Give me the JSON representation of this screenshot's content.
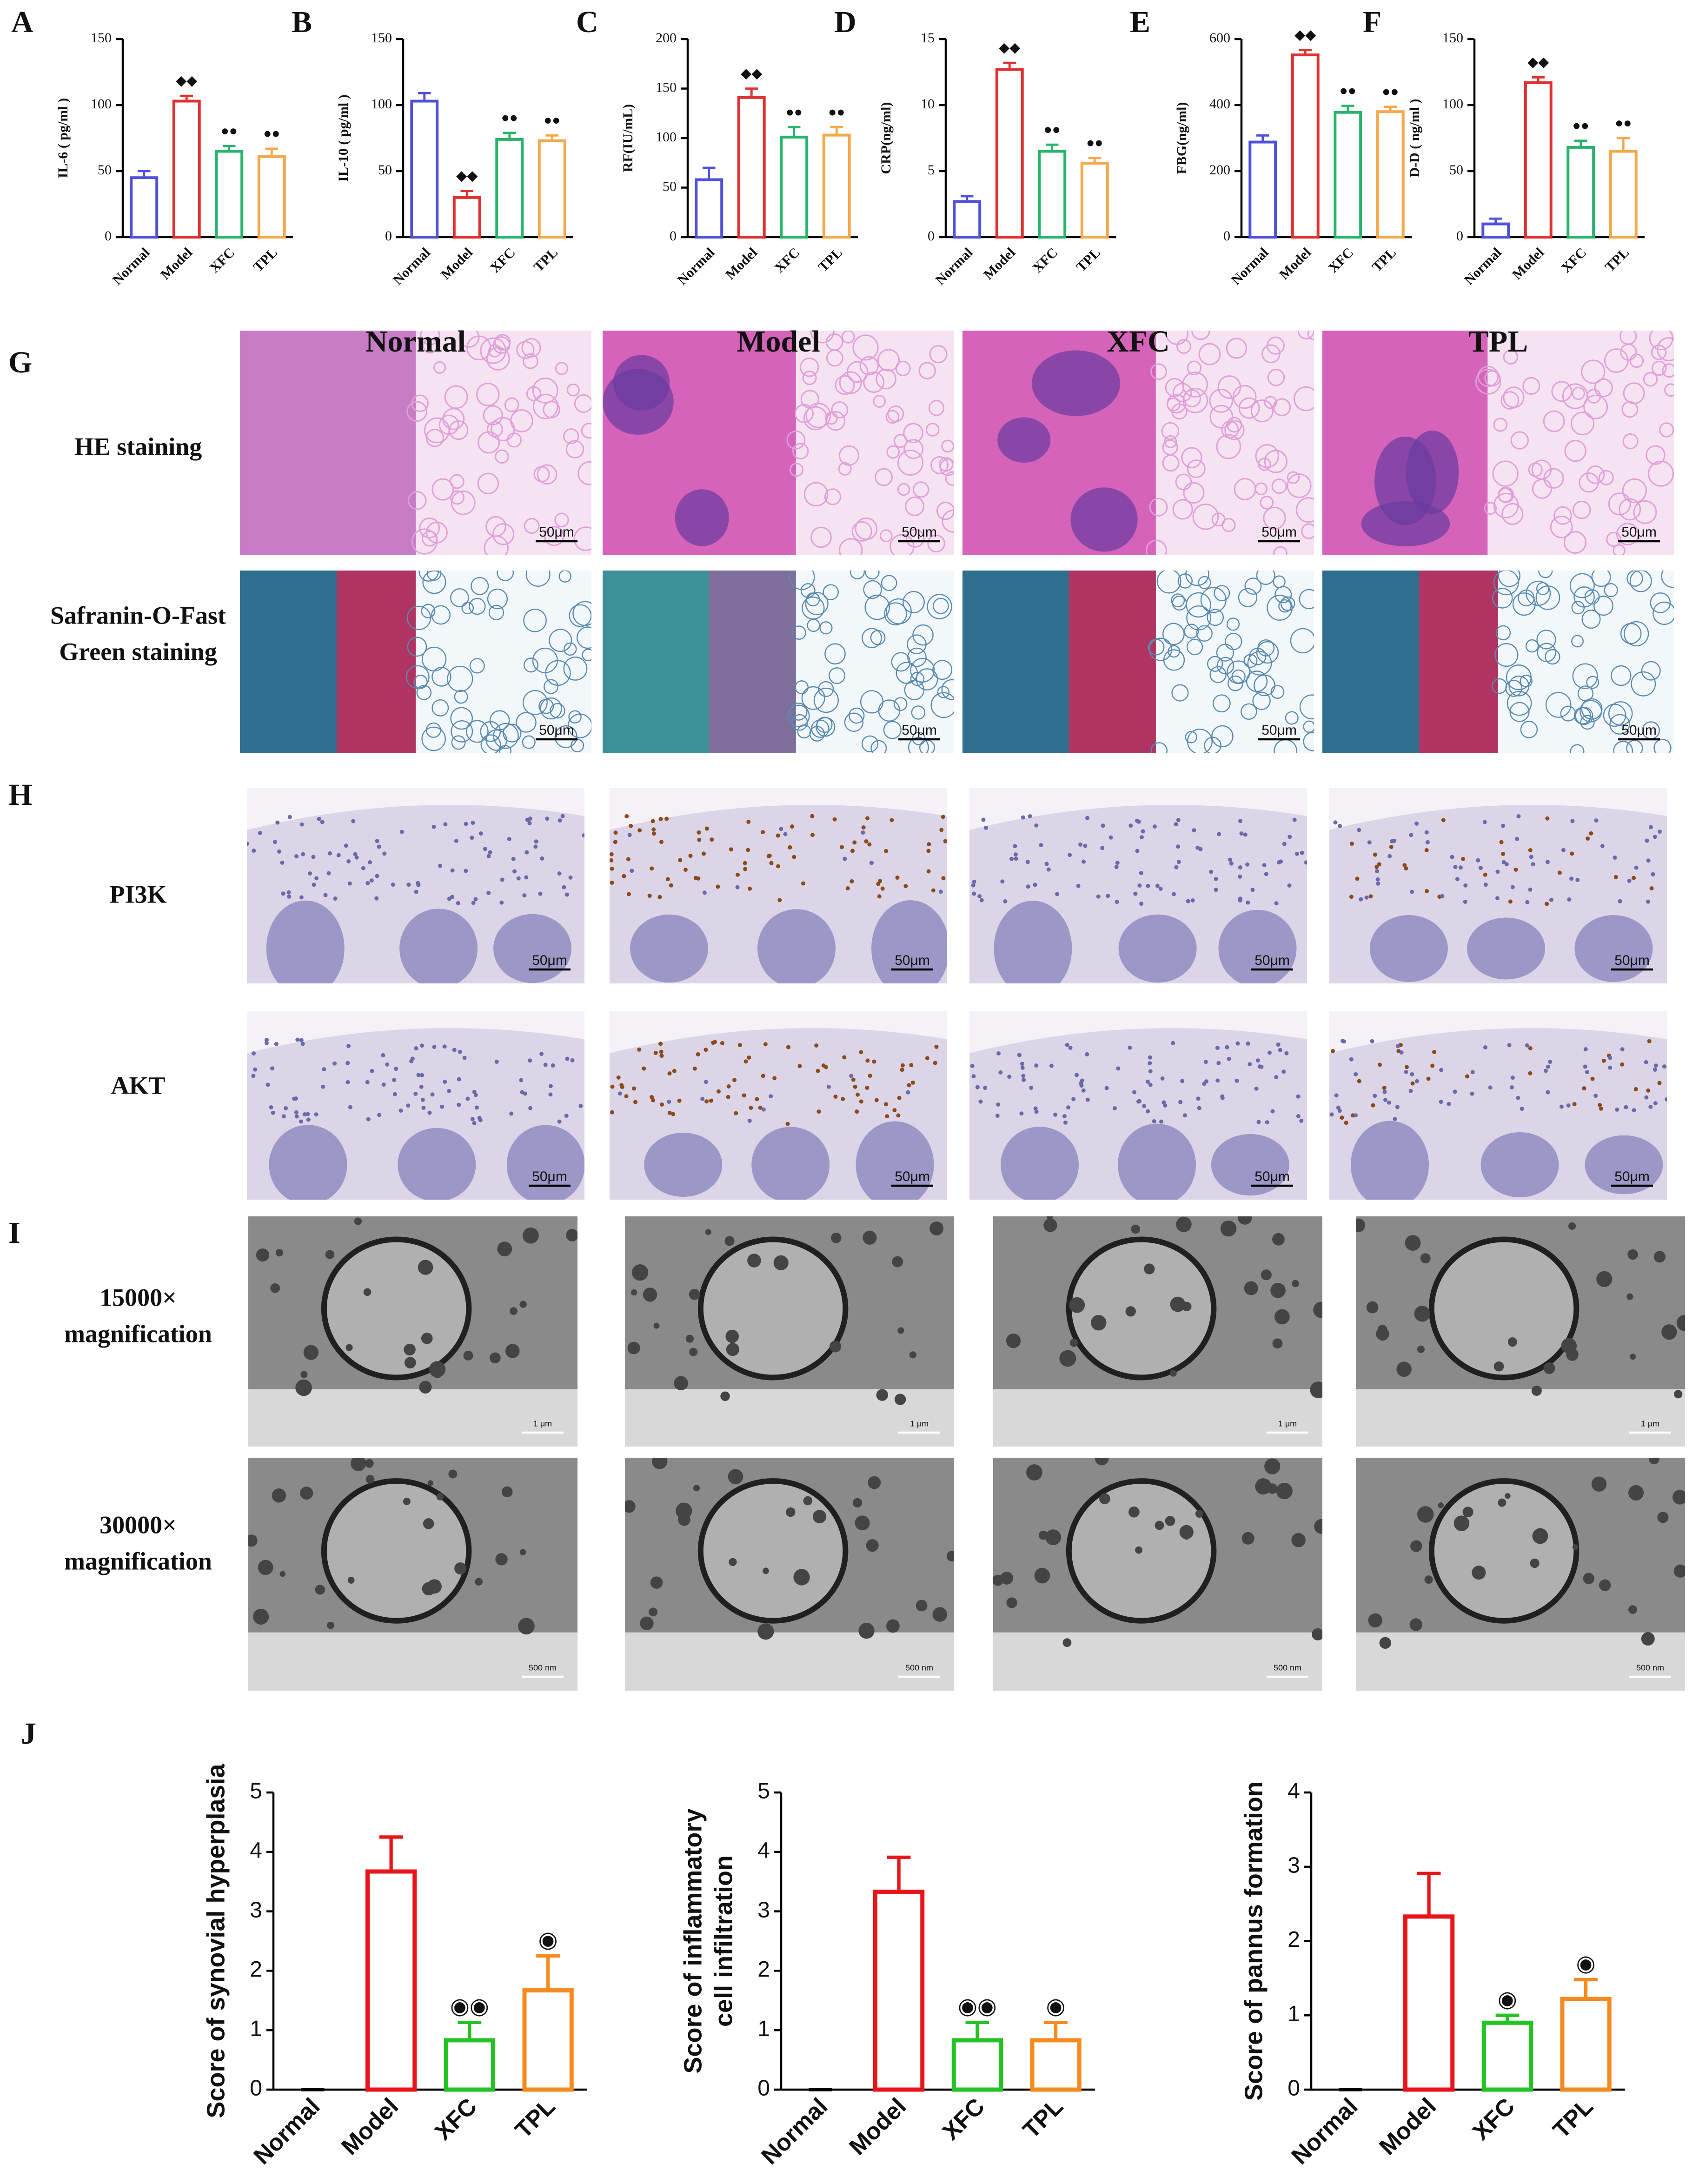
{
  "chart_data": [
    {
      "type": "bar",
      "panel": "A",
      "ylabel": [
        "IL-6 ( pg/ml )"
      ],
      "categories": [
        "Normal",
        "Model",
        "XFC",
        "TPL"
      ],
      "values": [
        45,
        103,
        65,
        61
      ],
      "errors": [
        5,
        4,
        4,
        6
      ],
      "annotations": [
        null,
        "◆◆",
        "●●",
        "●●"
      ],
      "colors": [
        "#5050dc",
        "#e03030",
        "#27b36a",
        "#f5a849"
      ],
      "ylim": [
        0,
        150
      ],
      "yticks": [
        0,
        50,
        100,
        150
      ]
    },
    {
      "type": "bar",
      "panel": "B",
      "ylabel": [
        "IL-10 ( pg/ml )"
      ],
      "categories": [
        "Normal",
        "Model",
        "XFC",
        "TPL"
      ],
      "values": [
        103,
        30,
        74,
        73
      ],
      "errors": [
        6,
        5,
        5,
        4
      ],
      "annotations": [
        null,
        "◆◆",
        "●●",
        "●●"
      ],
      "colors": [
        "#5050dc",
        "#e03030",
        "#27b36a",
        "#f5a849"
      ],
      "ylim": [
        0,
        150
      ],
      "yticks": [
        0,
        50,
        100,
        150
      ]
    },
    {
      "type": "bar",
      "panel": "C",
      "ylabel": [
        "RF(IU/mL)"
      ],
      "categories": [
        "Normal",
        "Model",
        "XFC",
        "TPL"
      ],
      "values": [
        58,
        141,
        101,
        103
      ],
      "errors": [
        12,
        9,
        10,
        8
      ],
      "annotations": [
        null,
        "◆◆",
        "●●",
        "●●"
      ],
      "colors": [
        "#5050dc",
        "#e03030",
        "#27b36a",
        "#f5a849"
      ],
      "ylim": [
        0,
        200
      ],
      "yticks": [
        0,
        50,
        100,
        150,
        200
      ]
    },
    {
      "type": "bar",
      "panel": "D",
      "ylabel": [
        "CRP(ng/ml)"
      ],
      "categories": [
        "Normal",
        "Model",
        "XFC",
        "TPL"
      ],
      "values": [
        2.7,
        12.7,
        6.5,
        5.6
      ],
      "errors": [
        0.4,
        0.5,
        0.5,
        0.4
      ],
      "annotations": [
        null,
        "◆◆",
        "●●",
        "●●"
      ],
      "colors": [
        "#5050dc",
        "#e03030",
        "#27b36a",
        "#f5a849"
      ],
      "ylim": [
        0,
        15
      ],
      "yticks": [
        0,
        5,
        10,
        15
      ]
    },
    {
      "type": "bar",
      "panel": "E",
      "ylabel": [
        "FBG(ng/ml)"
      ],
      "categories": [
        "Normal",
        "Model",
        "XFC",
        "TPL"
      ],
      "values": [
        288,
        552,
        378,
        380
      ],
      "errors": [
        20,
        15,
        20,
        15
      ],
      "annotations": [
        null,
        "◆◆",
        "●●",
        "●●"
      ],
      "colors": [
        "#5050dc",
        "#e03030",
        "#27b36a",
        "#f5a849"
      ],
      "ylim": [
        0,
        600
      ],
      "yticks": [
        0,
        200,
        400,
        600
      ]
    },
    {
      "type": "bar",
      "panel": "F",
      "ylabel": [
        "D-D ( ng/ml )"
      ],
      "categories": [
        "Normal",
        "Model",
        "XFC",
        "TPL"
      ],
      "values": [
        10,
        117,
        68,
        65
      ],
      "errors": [
        4,
        4,
        5,
        10
      ],
      "annotations": [
        null,
        "◆◆",
        "●●",
        "●●"
      ],
      "colors": [
        "#5050dc",
        "#e03030",
        "#27b36a",
        "#f5a849"
      ],
      "ylim": [
        0,
        150
      ],
      "yticks": [
        0,
        50,
        100,
        150
      ]
    },
    {
      "type": "bar",
      "panel": "J",
      "ylabel": [
        "Score of synovial hyperplasia"
      ],
      "categories": [
        "Normal",
        "Model",
        "XFC",
        "TPL"
      ],
      "values": [
        0,
        3.67,
        0.83,
        1.67
      ],
      "errors": [
        0,
        0.58,
        0.3,
        0.58
      ],
      "annotations": [
        null,
        null,
        "◉◉",
        "◉"
      ],
      "colors": [
        "#000000",
        "#e8141a",
        "#22c322",
        "#f58b1f"
      ],
      "ylim": [
        0,
        5
      ],
      "yticks": [
        0,
        1,
        2,
        3,
        4,
        5
      ]
    },
    {
      "type": "bar",
      "ylabel": [
        "Score of inflammatory",
        "cell infiltration"
      ],
      "categories": [
        "Normal",
        "Model",
        "XFC",
        "TPL"
      ],
      "values": [
        0,
        3.33,
        0.83,
        0.83
      ],
      "errors": [
        0,
        0.58,
        0.3,
        0.3
      ],
      "annotations": [
        null,
        null,
        "◉◉",
        "◉"
      ],
      "colors": [
        "#000000",
        "#e8141a",
        "#22c322",
        "#f58b1f"
      ],
      "ylim": [
        0,
        5
      ],
      "yticks": [
        0,
        1,
        2,
        3,
        4,
        5
      ]
    },
    {
      "type": "bar",
      "ylabel": [
        "Score of pannus formation"
      ],
      "categories": [
        "Normal",
        "Model",
        "XFC",
        "TPL"
      ],
      "values": [
        0,
        2.33,
        0.9,
        1.22
      ],
      "errors": [
        0,
        0.58,
        0.1,
        0.26
      ],
      "annotations": [
        null,
        null,
        "◉",
        "◉"
      ],
      "colors": [
        "#000000",
        "#e8141a",
        "#22c322",
        "#f58b1f"
      ],
      "ylim": [
        0,
        4
      ],
      "yticks": [
        0,
        1,
        2,
        3,
        4
      ]
    }
  ],
  "figure": {
    "panel_g": "G",
    "panel_h": "H",
    "panel_i": "I",
    "columns": [
      "Normal",
      "Model",
      "XFC",
      "TPL"
    ],
    "g_rows": [
      [
        "HE staining"
      ],
      [
        "Safranin-O-Fast",
        "Green staining"
      ]
    ],
    "h_rows": [
      [
        "PI3K"
      ],
      [
        "AKT"
      ]
    ],
    "i_rows": [
      [
        "15000×",
        "magnification"
      ],
      [
        "30000×",
        "magnification"
      ]
    ],
    "scale_lm": "50μm",
    "scale_em": [
      "1 μm",
      "500 nm"
    ]
  }
}
